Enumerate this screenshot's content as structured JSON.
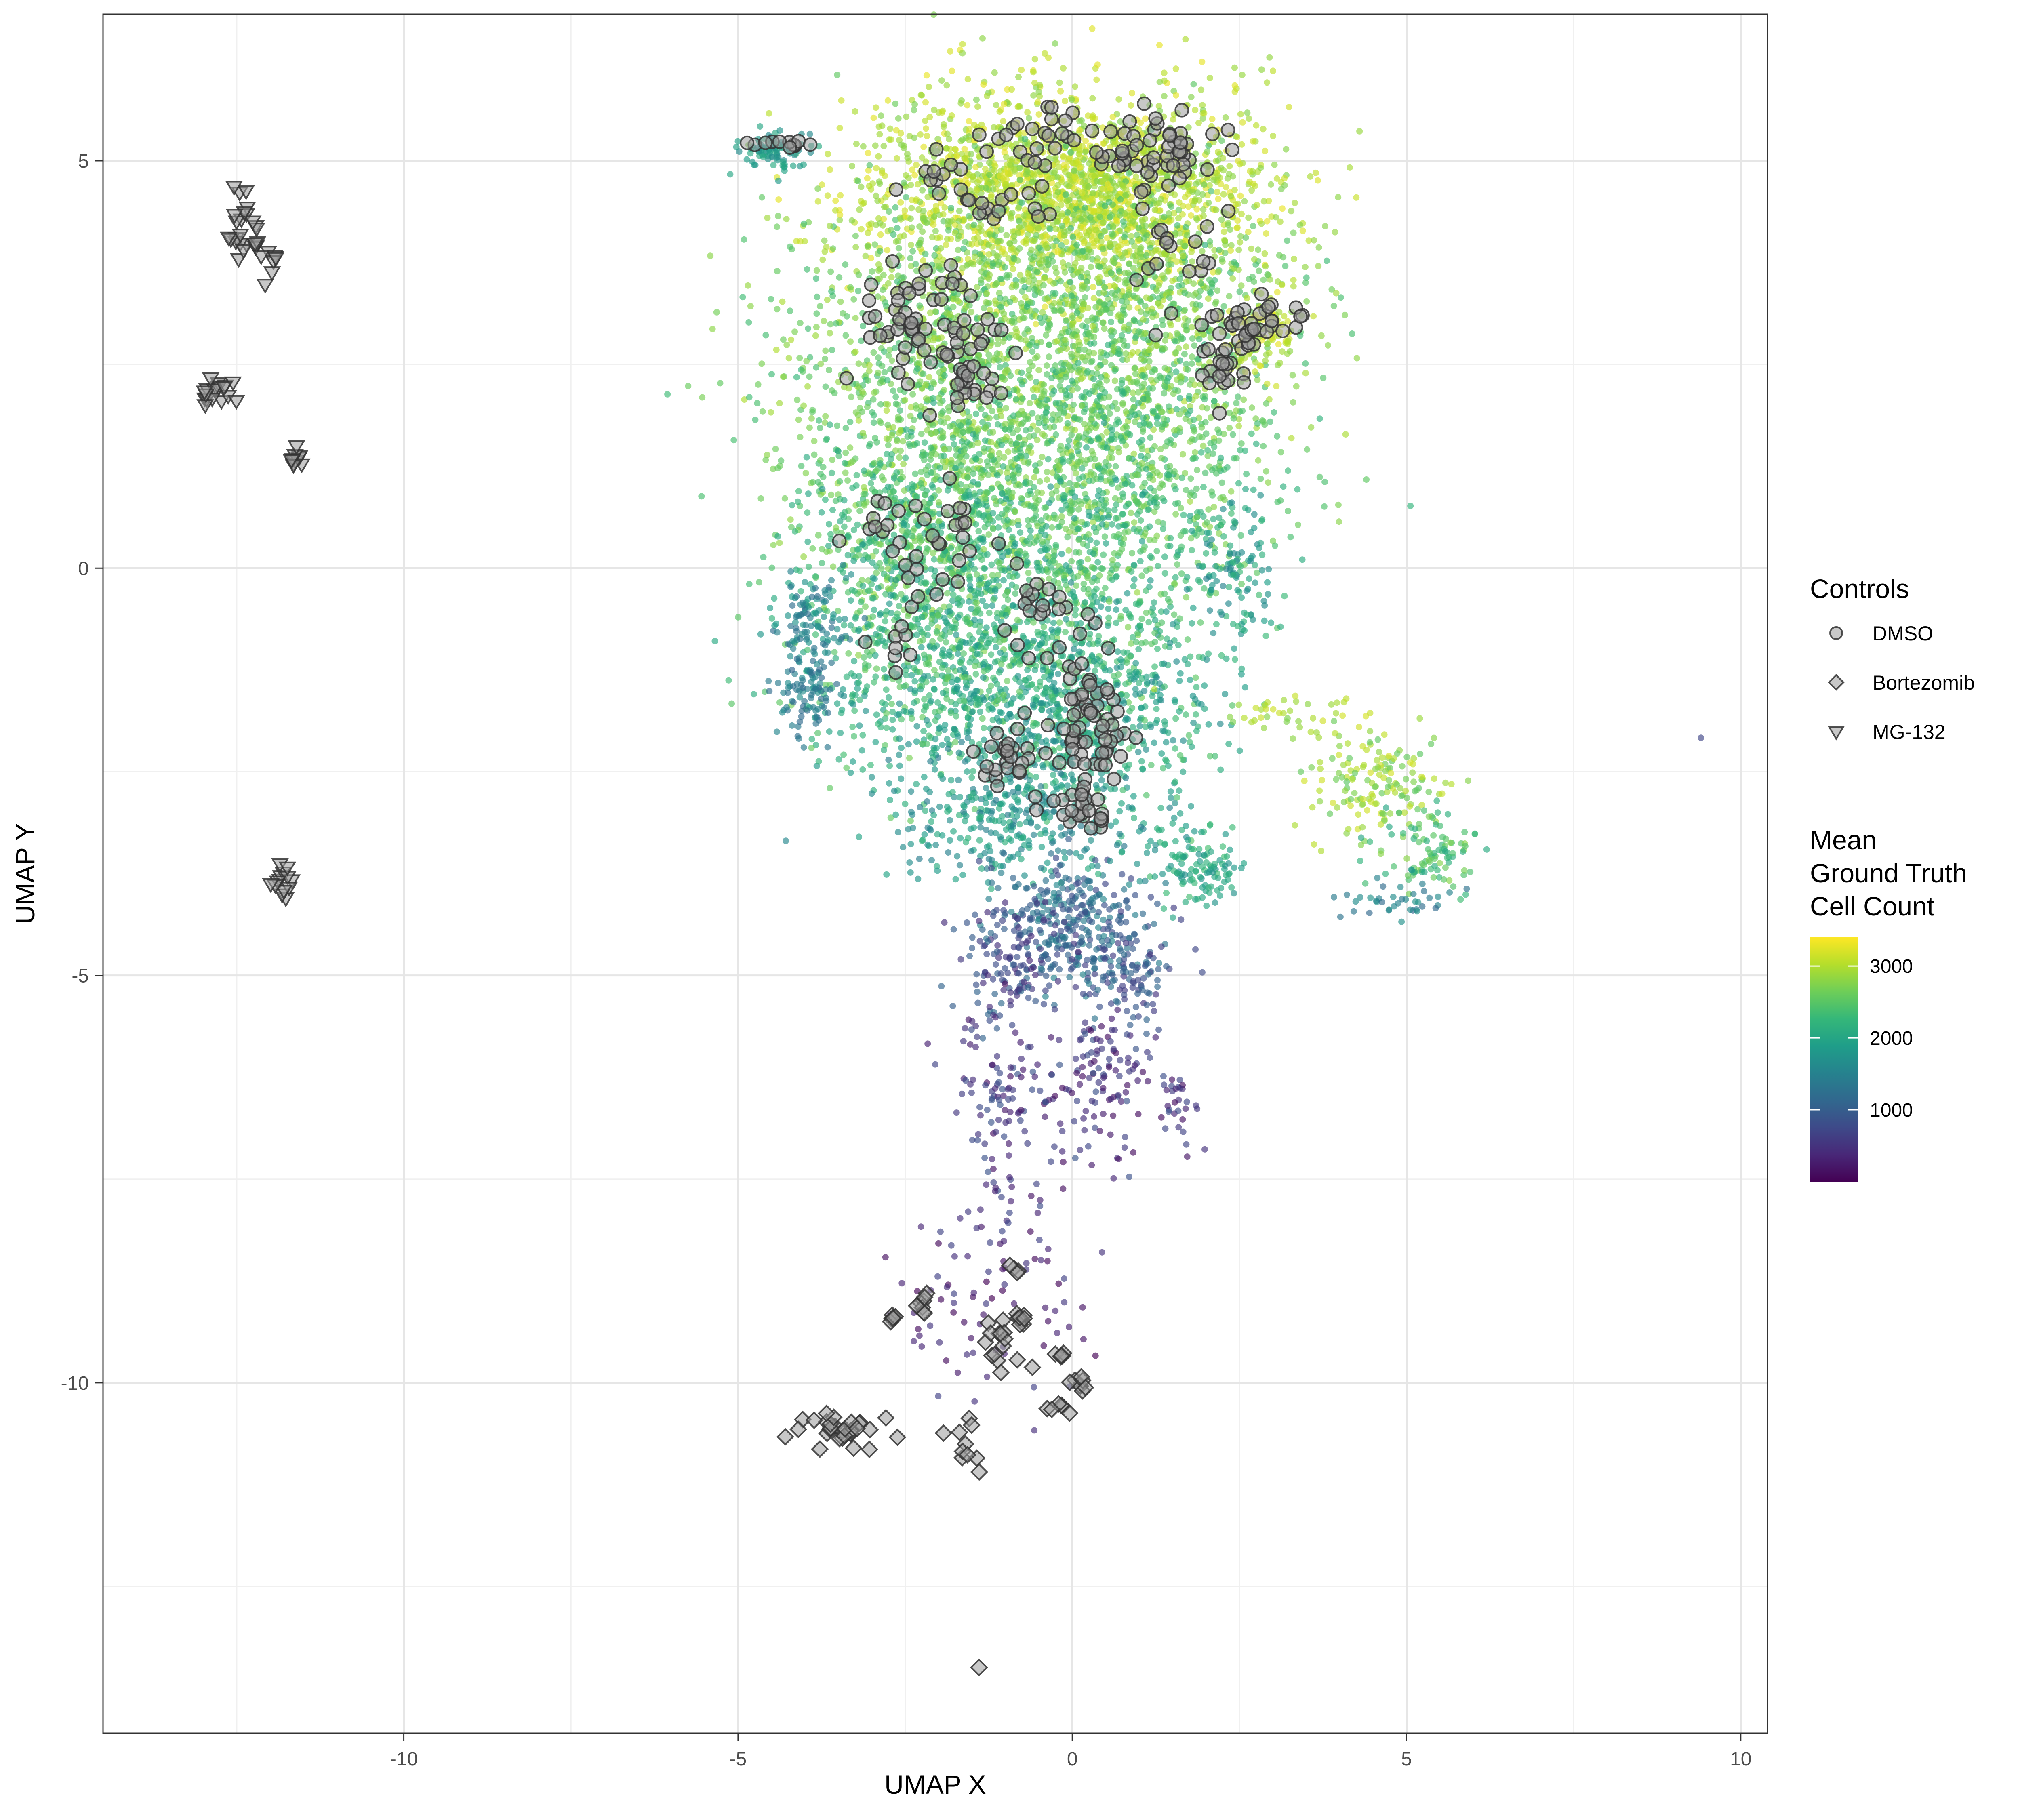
{
  "chart_data": {
    "type": "scatter",
    "xlabel": "UMAP X",
    "ylabel": "UMAP Y",
    "xlim": [
      -14.5,
      10.4
    ],
    "ylim": [
      -14.3,
      6.8
    ],
    "x_ticks": [
      -10,
      -5,
      0,
      5,
      10
    ],
    "y_ticks": [
      -10,
      -5,
      0,
      5
    ],
    "x_tick_labels": [
      "-10",
      "-5",
      "0",
      "5",
      "10"
    ],
    "y_tick_labels": [
      "-10",
      "-5",
      "0",
      "5"
    ],
    "grid": true,
    "legend_position": "right",
    "colorscale": {
      "name": "viridis",
      "title_lines": [
        "Mean",
        "Ground Truth",
        "Cell Count"
      ],
      "min": 0,
      "max": 3400,
      "ticks": [
        1000,
        2000,
        3000
      ],
      "tick_labels": [
        "1000",
        "2000",
        "3000"
      ],
      "stops": [
        "#440154",
        "#482878",
        "#3e4a89",
        "#31688e",
        "#26828e",
        "#1f9e89",
        "#35b779",
        "#6ece58",
        "#b5de2b",
        "#fde725"
      ]
    },
    "controls_legend": {
      "title": "Controls",
      "entries": [
        {
          "label": "DMSO",
          "shape": "circle"
        },
        {
          "label": "Bortezomib",
          "shape": "diamond"
        },
        {
          "label": "MG-132",
          "shape": "triangle-down"
        }
      ]
    },
    "colored_regions": [
      {
        "x": -0.8,
        "y": 4.7,
        "sx": 1.3,
        "sy": 0.6,
        "n": 1100,
        "c": [
          2700,
          3300
        ]
      },
      {
        "x": 0.8,
        "y": 4.6,
        "sx": 1.2,
        "sy": 0.6,
        "n": 900,
        "c": [
          2700,
          3300
        ]
      },
      {
        "x": -1.4,
        "y": 3.0,
        "sx": 1.4,
        "sy": 0.9,
        "n": 1000,
        "c": [
          2300,
          3000
        ]
      },
      {
        "x": 1.2,
        "y": 3.0,
        "sx": 1.1,
        "sy": 0.9,
        "n": 800,
        "c": [
          2300,
          3000
        ]
      },
      {
        "x": -1.6,
        "y": 1.4,
        "sx": 1.3,
        "sy": 0.8,
        "n": 800,
        "c": [
          2200,
          2900
        ]
      },
      {
        "x": 0.9,
        "y": 1.2,
        "sx": 1.1,
        "sy": 0.8,
        "n": 650,
        "c": [
          2100,
          2800
        ]
      },
      {
        "x": -2.4,
        "y": 0.2,
        "sx": 0.9,
        "sy": 0.7,
        "n": 550,
        "c": [
          2000,
          2800
        ]
      },
      {
        "x": -0.5,
        "y": -0.4,
        "sx": 1.2,
        "sy": 0.8,
        "n": 700,
        "c": [
          1800,
          2700
        ]
      },
      {
        "x": -1.8,
        "y": -1.4,
        "sx": 1.1,
        "sy": 0.6,
        "n": 550,
        "c": [
          1700,
          2600
        ]
      },
      {
        "x": 0.3,
        "y": -1.8,
        "sx": 0.9,
        "sy": 0.6,
        "n": 500,
        "c": [
          1600,
          2500
        ]
      },
      {
        "x": -1.0,
        "y": -3.0,
        "sx": 0.9,
        "sy": 0.45,
        "n": 350,
        "c": [
          1400,
          2200
        ]
      },
      {
        "x": -3.9,
        "y": -0.6,
        "sx": 0.3,
        "sy": 0.3,
        "n": 100,
        "c": [
          1200,
          1900
        ]
      },
      {
        "x": -4.0,
        "y": -1.5,
        "sx": 0.25,
        "sy": 0.25,
        "n": 90,
        "c": [
          1100,
          1700
        ]
      },
      {
        "x": 2.4,
        "y": 0.0,
        "sx": 0.35,
        "sy": 0.45,
        "n": 110,
        "c": [
          1500,
          2300
        ]
      },
      {
        "x": 2.8,
        "y": 2.9,
        "sx": 0.25,
        "sy": 0.25,
        "n": 110,
        "c": [
          2800,
          3300
        ]
      },
      {
        "x": -4.5,
        "y": 5.1,
        "sx": 0.25,
        "sy": 0.12,
        "n": 90,
        "c": [
          1600,
          2100
        ]
      },
      {
        "x": 0.0,
        "y": -4.3,
        "sx": 0.55,
        "sy": 0.4,
        "n": 250,
        "c": [
          700,
          1600
        ]
      },
      {
        "x": -0.9,
        "y": -4.8,
        "sx": 0.45,
        "sy": 0.4,
        "n": 140,
        "c": [
          400,
          1200
        ]
      },
      {
        "x": 0.7,
        "y": -4.9,
        "sx": 0.45,
        "sy": 0.35,
        "n": 130,
        "c": [
          500,
          1300
        ]
      },
      {
        "x": -1.0,
        "y": -6.3,
        "sx": 0.4,
        "sy": 0.55,
        "n": 110,
        "c": [
          100,
          900
        ]
      },
      {
        "x": 0.5,
        "y": -6.2,
        "sx": 0.35,
        "sy": 0.55,
        "n": 110,
        "c": [
          100,
          900
        ]
      },
      {
        "x": 1.6,
        "y": -6.6,
        "sx": 0.15,
        "sy": 0.3,
        "n": 30,
        "c": [
          100,
          800
        ]
      },
      {
        "x": 2.0,
        "y": -3.7,
        "sx": 0.3,
        "sy": 0.25,
        "n": 90,
        "c": [
          1700,
          2400
        ]
      },
      {
        "x": 1.2,
        "y": -3.5,
        "sx": 0.5,
        "sy": 0.25,
        "n": 50,
        "c": [
          1500,
          2300
        ]
      },
      {
        "x": 4.6,
        "y": -2.6,
        "sx": 0.55,
        "sy": 0.3,
        "n": 150,
        "c": [
          2500,
          3200
        ]
      },
      {
        "x": 5.3,
        "y": -3.5,
        "sx": 0.4,
        "sy": 0.25,
        "n": 100,
        "c": [
          2000,
          2800
        ]
      },
      {
        "x": 4.8,
        "y": -4.1,
        "sx": 0.4,
        "sy": 0.12,
        "n": 40,
        "c": [
          1100,
          1800
        ]
      },
      {
        "x": 3.3,
        "y": -1.8,
        "sx": 0.6,
        "sy": 0.15,
        "n": 40,
        "c": [
          2700,
          3200
        ]
      },
      {
        "x": -1.6,
        "y": -9.0,
        "sx": 0.5,
        "sy": 0.6,
        "n": 60,
        "c": [
          0,
          700
        ]
      },
      {
        "x": -0.3,
        "y": -8.8,
        "sx": 0.3,
        "sy": 0.6,
        "n": 25,
        "c": [
          0,
          700
        ]
      },
      {
        "x": -1.1,
        "y": -7.6,
        "sx": 0.2,
        "sy": 0.35,
        "n": 20,
        "c": [
          300,
          900
        ]
      },
      {
        "x": 9.4,
        "y": -2.1,
        "sx": 0.01,
        "sy": 0.01,
        "n": 1,
        "c": [
          700,
          700
        ]
      }
    ],
    "control_groups": [
      {
        "shape": "circle",
        "x": 1.2,
        "y": 5.1,
        "sx": 0.6,
        "sy": 0.25,
        "n": 45
      },
      {
        "shape": "circle",
        "x": -0.4,
        "y": 5.2,
        "sx": 0.8,
        "sy": 0.2,
        "n": 30
      },
      {
        "shape": "circle",
        "x": -0.2,
        "y": 5.6,
        "sx": 0.1,
        "sy": 0.06,
        "n": 5
      },
      {
        "shape": "circle",
        "x": -2.0,
        "y": 4.7,
        "sx": 0.3,
        "sy": 0.12,
        "n": 10
      },
      {
        "shape": "circle",
        "x": -1.0,
        "y": 4.4,
        "sx": 0.4,
        "sy": 0.15,
        "n": 14
      },
      {
        "shape": "circle",
        "x": -2.3,
        "y": 3.0,
        "sx": 0.5,
        "sy": 0.45,
        "n": 50
      },
      {
        "shape": "circle",
        "x": -1.6,
        "y": 2.4,
        "sx": 0.35,
        "sy": 0.35,
        "n": 35
      },
      {
        "shape": "circle",
        "x": 2.5,
        "y": 3.0,
        "sx": 0.45,
        "sy": 0.2,
        "n": 45
      },
      {
        "shape": "circle",
        "x": 2.2,
        "y": 2.4,
        "sx": 0.2,
        "sy": 0.25,
        "n": 15
      },
      {
        "shape": "circle",
        "x": 1.5,
        "y": 3.9,
        "sx": 0.4,
        "sy": 0.25,
        "n": 15
      },
      {
        "shape": "circle",
        "x": -2.2,
        "y": 0.3,
        "sx": 0.6,
        "sy": 0.35,
        "n": 35
      },
      {
        "shape": "circle",
        "x": -0.5,
        "y": -0.5,
        "sx": 0.25,
        "sy": 0.25,
        "n": 18
      },
      {
        "shape": "circle",
        "x": 0.2,
        "y": -1.9,
        "sx": 0.3,
        "sy": 0.55,
        "n": 70
      },
      {
        "shape": "circle",
        "x": -1.0,
        "y": -2.3,
        "sx": 0.25,
        "sy": 0.15,
        "n": 25
      },
      {
        "shape": "circle",
        "x": -0.1,
        "y": -2.9,
        "sx": 0.3,
        "sy": 0.15,
        "n": 18
      },
      {
        "shape": "circle",
        "x": -2.7,
        "y": -0.9,
        "sx": 0.2,
        "sy": 0.15,
        "n": 8
      },
      {
        "shape": "circle",
        "x": -4.5,
        "y": 5.2,
        "sx": 0.2,
        "sy": 0.05,
        "n": 12
      },
      {
        "shape": "triangle-down",
        "x": -12.4,
        "y": 4.2,
        "sx": 0.15,
        "sy": 0.25,
        "n": 25
      },
      {
        "shape": "triangle-down",
        "x": -12.0,
        "y": 3.8,
        "sx": 0.08,
        "sy": 0.12,
        "n": 8
      },
      {
        "shape": "triangle-down",
        "x": -12.8,
        "y": 2.15,
        "sx": 0.18,
        "sy": 0.08,
        "n": 18
      },
      {
        "shape": "triangle-down",
        "x": -11.6,
        "y": 1.35,
        "sx": 0.06,
        "sy": 0.08,
        "n": 10
      },
      {
        "shape": "triangle-down",
        "x": -11.8,
        "y": -3.8,
        "sx": 0.1,
        "sy": 0.15,
        "n": 14
      },
      {
        "shape": "diamond",
        "x": -2.7,
        "y": -9.2,
        "sx": 0.06,
        "sy": 0.04,
        "n": 6
      },
      {
        "shape": "diamond",
        "x": -2.2,
        "y": -9.0,
        "sx": 0.05,
        "sy": 0.1,
        "n": 8
      },
      {
        "shape": "diamond",
        "x": -1.1,
        "y": -9.5,
        "sx": 0.1,
        "sy": 0.15,
        "n": 14
      },
      {
        "shape": "diamond",
        "x": -0.8,
        "y": -9.2,
        "sx": 0.08,
        "sy": 0.08,
        "n": 8
      },
      {
        "shape": "diamond",
        "x": -0.9,
        "y": -8.6,
        "sx": 0.05,
        "sy": 0.05,
        "n": 4
      },
      {
        "shape": "diamond",
        "x": -0.2,
        "y": -9.7,
        "sx": 0.06,
        "sy": 0.05,
        "n": 5
      },
      {
        "shape": "diamond",
        "x": 0.1,
        "y": -10.0,
        "sx": 0.06,
        "sy": 0.05,
        "n": 8
      },
      {
        "shape": "diamond",
        "x": -0.2,
        "y": -10.3,
        "sx": 0.08,
        "sy": 0.1,
        "n": 6
      },
      {
        "shape": "diamond",
        "x": -3.5,
        "y": -10.6,
        "sx": 0.3,
        "sy": 0.12,
        "n": 30
      },
      {
        "shape": "diamond",
        "x": -1.6,
        "y": -10.8,
        "sx": 0.12,
        "sy": 0.15,
        "n": 10
      },
      {
        "shape": "diamond",
        "x": -1.4,
        "y": -13.5,
        "sx": 0.01,
        "sy": 0.01,
        "n": 1
      },
      {
        "shape": "diamond",
        "x": -0.6,
        "y": -9.8,
        "sx": 0.01,
        "sy": 0.01,
        "n": 1
      }
    ]
  }
}
